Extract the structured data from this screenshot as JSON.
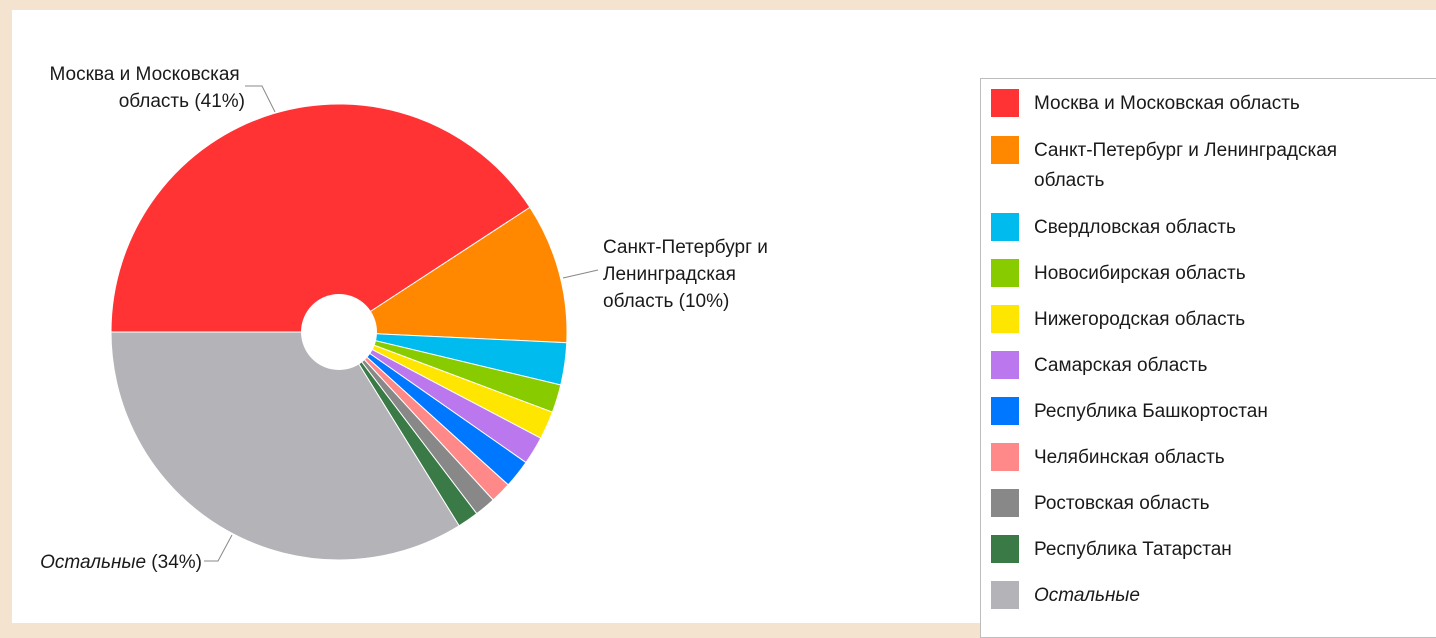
{
  "chart_data": {
    "type": "pie",
    "title": "",
    "slices": [
      {
        "name": "Москва и Московская область",
        "value": 41,
        "color": "#ff3333"
      },
      {
        "name": "Санкт-Петербург и Ленинградская область",
        "value": 10,
        "color": "#ff8800"
      },
      {
        "name": "Свердловская область",
        "value": 3,
        "color": "#00bbee"
      },
      {
        "name": "Новосибирская область",
        "value": 2,
        "color": "#88cc00"
      },
      {
        "name": "Нижегородская область",
        "value": 2,
        "color": "#ffe600"
      },
      {
        "name": "Самарская область",
        "value": 2,
        "color": "#bb77ee"
      },
      {
        "name": "Республика Башкортостан",
        "value": 2,
        "color": "#0077ff"
      },
      {
        "name": "Челябинская область",
        "value": 1.5,
        "color": "#ff8888"
      },
      {
        "name": "Ростовская область",
        "value": 1.5,
        "color": "#888888"
      },
      {
        "name": "Республика Татарстан",
        "value": 1.5,
        "color": "#3a7a46"
      },
      {
        "name": "Остальные",
        "value": 34,
        "color": "#b3b3b8"
      }
    ],
    "legend_position": "right",
    "callouts": [
      {
        "lines": [
          "Москва и Московская",
          "область (41%)"
        ]
      },
      {
        "lines": [
          "Санкт-Петербург и",
          "Ленинградская",
          "область (10%)"
        ]
      },
      {
        "italic": "Остальные",
        "rest": " (34%)"
      }
    ]
  },
  "legend": {
    "items": [
      {
        "lines": [
          "Москва и Московская область"
        ],
        "color": "#ff3333"
      },
      {
        "lines": [
          "Санкт-Петербург и Ленинградская",
          "область"
        ],
        "color": "#ff8800"
      },
      {
        "lines": [
          "Свердловская область"
        ],
        "color": "#00bbee"
      },
      {
        "lines": [
          "Новосибирская область"
        ],
        "color": "#88cc00"
      },
      {
        "lines": [
          "Нижегородская область"
        ],
        "color": "#ffe600"
      },
      {
        "lines": [
          "Самарская область"
        ],
        "color": "#bb77ee"
      },
      {
        "lines": [
          "Республика Башкортостан"
        ],
        "color": "#0077ff"
      },
      {
        "lines": [
          "Челябинская область"
        ],
        "color": "#ff8888"
      },
      {
        "lines": [
          "Ростовская область"
        ],
        "color": "#888888"
      },
      {
        "lines": [
          "Республика Татарстан"
        ],
        "color": "#3a7a46"
      },
      {
        "lines": [
          "Остальные"
        ],
        "color": "#b3b3b8",
        "italic": true
      }
    ]
  }
}
